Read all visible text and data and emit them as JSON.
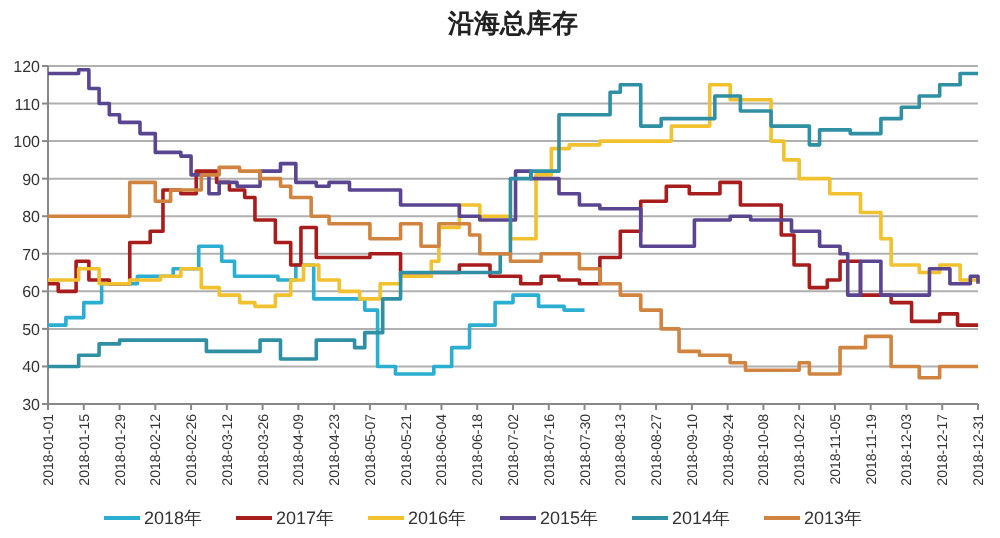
{
  "chart_data": {
    "type": "step",
    "title": "沿海总库存",
    "ylim": [
      30,
      120
    ],
    "yticks": [
      30,
      40,
      50,
      60,
      70,
      80,
      90,
      100,
      110,
      120
    ],
    "xlim": [
      "2018-01-01",
      "2018-12-31"
    ],
    "xticks": [
      "2018-01-01",
      "2018-01-15",
      "2018-01-29",
      "2018-02-12",
      "2018-02-26",
      "2018-03-12",
      "2018-03-26",
      "2018-04-09",
      "2018-04-23",
      "2018-05-07",
      "2018-05-21",
      "2018-06-04",
      "2018-06-18",
      "2018-07-02",
      "2018-07-16",
      "2018-07-30",
      "2018-08-13",
      "2018-08-27",
      "2018-09-10",
      "2018-09-24",
      "2018-10-08",
      "2018-10-22",
      "2018-11-05",
      "2018-11-19",
      "2018-12-03",
      "2018-12-17",
      "2018-12-31"
    ],
    "grid": "y",
    "legend": "bottom",
    "line_style": "solid",
    "marker": "none",
    "series": [
      {
        "name": "2018年",
        "color": "#2aaed2",
        "x": [
          "2018-01-01",
          "2018-01-08",
          "2018-01-15",
          "2018-01-22",
          "2018-02-05",
          "2018-02-19",
          "2018-03-01",
          "2018-03-10",
          "2018-03-15",
          "2018-04-01",
          "2018-04-08",
          "2018-04-15",
          "2018-04-30",
          "2018-05-05",
          "2018-05-10",
          "2018-05-17",
          "2018-06-01",
          "2018-06-08",
          "2018-06-15",
          "2018-06-25",
          "2018-07-02",
          "2018-07-12",
          "2018-07-22",
          "2018-07-30"
        ],
        "values": [
          51,
          53,
          57,
          62,
          64,
          66,
          72,
          68,
          64,
          63,
          67,
          58,
          58,
          55,
          40,
          38,
          40,
          45,
          51,
          57,
          59,
          56,
          55,
          55
        ]
      },
      {
        "name": "2017年",
        "color": "#a81c1c",
        "x": [
          "2018-01-01",
          "2018-01-05",
          "2018-01-12",
          "2018-01-17",
          "2018-01-25",
          "2018-02-02",
          "2018-02-10",
          "2018-02-15",
          "2018-02-22",
          "2018-02-28",
          "2018-03-08",
          "2018-03-13",
          "2018-03-19",
          "2018-03-23",
          "2018-03-31",
          "2018-04-06",
          "2018-04-10",
          "2018-04-16",
          "2018-05-07",
          "2018-05-19",
          "2018-05-31",
          "2018-06-11",
          "2018-06-23",
          "2018-07-05",
          "2018-07-13",
          "2018-07-20",
          "2018-07-28",
          "2018-08-05",
          "2018-08-13",
          "2018-08-21",
          "2018-08-31",
          "2018-09-09",
          "2018-09-21",
          "2018-09-29",
          "2018-10-15",
          "2018-10-20",
          "2018-10-26",
          "2018-11-02",
          "2018-11-07",
          "2018-11-15",
          "2018-11-27",
          "2018-12-05",
          "2018-12-16",
          "2018-12-23",
          "2018-12-31"
        ],
        "values": [
          62,
          60,
          68,
          63,
          62,
          73,
          76,
          87,
          86,
          92,
          89,
          87,
          85,
          79,
          73,
          67,
          77,
          69,
          70,
          64,
          65,
          67,
          64,
          62,
          64,
          63,
          62,
          69,
          76,
          84,
          88,
          86,
          89,
          83,
          75,
          67,
          61,
          63,
          68,
          59,
          57,
          52,
          54,
          51,
          51
        ]
      },
      {
        "name": "2016年",
        "color": "#f2c12e",
        "x": [
          "2018-01-01",
          "2018-01-13",
          "2018-01-21",
          "2018-02-02",
          "2018-02-14",
          "2018-02-22",
          "2018-03-02",
          "2018-03-09",
          "2018-03-17",
          "2018-03-23",
          "2018-03-31",
          "2018-04-06",
          "2018-04-11",
          "2018-04-17",
          "2018-04-25",
          "2018-05-03",
          "2018-05-11",
          "2018-05-19",
          "2018-05-31",
          "2018-06-03",
          "2018-06-11",
          "2018-06-19",
          "2018-07-01",
          "2018-07-11",
          "2018-07-17",
          "2018-07-24",
          "2018-08-05",
          "2018-08-19",
          "2018-09-02",
          "2018-09-17",
          "2018-09-25",
          "2018-10-11",
          "2018-10-16",
          "2018-10-22",
          "2018-11-03",
          "2018-11-15",
          "2018-11-23",
          "2018-11-27",
          "2018-12-08",
          "2018-12-16",
          "2018-12-24",
          "2018-12-31"
        ],
        "values": [
          63,
          66,
          62,
          63,
          64,
          66,
          61,
          59,
          57,
          56,
          59,
          63,
          67,
          63,
          60,
          58,
          62,
          64,
          68,
          77,
          83,
          80,
          74,
          91,
          98,
          99,
          100,
          100,
          104,
          115,
          111,
          100,
          95,
          90,
          86,
          81,
          74,
          67,
          65,
          67,
          63,
          63
        ]
      },
      {
        "name": "2015年",
        "color": "#5a4591",
        "x": [
          "2018-01-01",
          "2018-01-13",
          "2018-01-17",
          "2018-01-21",
          "2018-01-25",
          "2018-01-29",
          "2018-02-06",
          "2018-02-12",
          "2018-02-22",
          "2018-02-26",
          "2018-03-05",
          "2018-03-09",
          "2018-03-16",
          "2018-03-25",
          "2018-04-02",
          "2018-04-08",
          "2018-04-16",
          "2018-04-21",
          "2018-04-29",
          "2018-05-19",
          "2018-05-27",
          "2018-06-11",
          "2018-06-19",
          "2018-07-03",
          "2018-07-09",
          "2018-07-20",
          "2018-07-28",
          "2018-08-05",
          "2018-08-21",
          "2018-09-11",
          "2018-09-25",
          "2018-10-03",
          "2018-10-11",
          "2018-10-19",
          "2018-10-30",
          "2018-11-07",
          "2018-11-10",
          "2018-11-15",
          "2018-11-23",
          "2018-12-05",
          "2018-12-12",
          "2018-12-20",
          "2018-12-28",
          "2018-12-31"
        ],
        "values": [
          118,
          119,
          114,
          110,
          107,
          105,
          102,
          97,
          96,
          91,
          86,
          89,
          88,
          92,
          94,
          89,
          88,
          89,
          87,
          83,
          83,
          80,
          79,
          92,
          90,
          86,
          83,
          82,
          72,
          79,
          80,
          79,
          79,
          76,
          72,
          70,
          59,
          68,
          59,
          59,
          66,
          62,
          64,
          62
        ]
      },
      {
        "name": "2014年",
        "color": "#2f8fa3",
        "x": [
          "2018-01-01",
          "2018-01-13",
          "2018-01-21",
          "2018-01-29",
          "2018-03-04",
          "2018-03-25",
          "2018-04-02",
          "2018-04-16",
          "2018-05-01",
          "2018-05-05",
          "2018-05-12",
          "2018-05-19",
          "2018-06-27",
          "2018-07-01",
          "2018-07-09",
          "2018-07-20",
          "2018-08-09",
          "2018-08-13",
          "2018-08-21",
          "2018-08-29",
          "2018-09-19",
          "2018-09-29",
          "2018-10-11",
          "2018-10-26",
          "2018-10-30",
          "2018-11-11",
          "2018-11-23",
          "2018-12-01",
          "2018-12-08",
          "2018-12-16",
          "2018-12-24",
          "2018-12-31"
        ],
        "values": [
          40,
          43,
          46,
          47,
          44,
          47,
          42,
          47,
          45,
          49,
          58,
          65,
          70,
          90,
          92,
          107,
          113,
          115,
          104,
          106,
          112,
          108,
          104,
          99,
          103,
          102,
          106,
          109,
          112,
          115,
          118,
          118
        ]
      },
      {
        "name": "2013年",
        "color": "#d0843f",
        "x": [
          "2018-01-01",
          "2018-02-02",
          "2018-02-12",
          "2018-02-18",
          "2018-03-02",
          "2018-03-09",
          "2018-03-17",
          "2018-03-25",
          "2018-04-02",
          "2018-04-06",
          "2018-04-14",
          "2018-04-21",
          "2018-05-07",
          "2018-05-19",
          "2018-05-27",
          "2018-06-03",
          "2018-06-15",
          "2018-06-19",
          "2018-07-01",
          "2018-07-13",
          "2018-07-28",
          "2018-08-05",
          "2018-08-13",
          "2018-08-21",
          "2018-08-29",
          "2018-09-05",
          "2018-09-13",
          "2018-09-25",
          "2018-10-01",
          "2018-10-22",
          "2018-10-26",
          "2018-11-07",
          "2018-11-17",
          "2018-11-27",
          "2018-12-08",
          "2018-12-16",
          "2018-12-31"
        ],
        "values": [
          80,
          89,
          84,
          87,
          91,
          93,
          92,
          90,
          88,
          85,
          80,
          78,
          74,
          78,
          72,
          78,
          75,
          70,
          68,
          70,
          66,
          62,
          59,
          55,
          50,
          44,
          43,
          41,
          39,
          41,
          38,
          45,
          48,
          40,
          37,
          40,
          40
        ]
      }
    ]
  }
}
